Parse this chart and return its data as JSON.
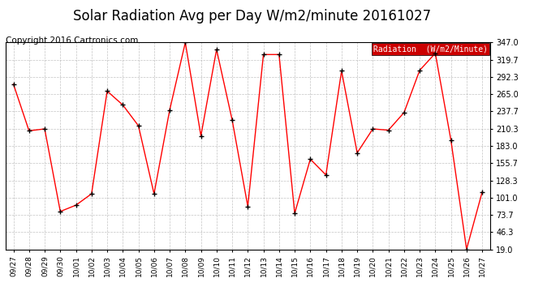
{
  "title": "Solar Radiation Avg per Day W/m2/minute 20161027",
  "copyright": "Copyright 2016 Cartronics.com",
  "legend_label": "Radiation  (W/m2/Minute)",
  "x_labels": [
    "09/27",
    "09/28",
    "09/29",
    "09/30",
    "10/01",
    "10/02",
    "10/03",
    "10/04",
    "10/05",
    "10/06",
    "10/07",
    "10/08",
    "10/09",
    "10/10",
    "10/11",
    "10/12",
    "10/13",
    "10/14",
    "10/15",
    "10/16",
    "10/17",
    "10/18",
    "10/19",
    "10/20",
    "10/21",
    "10/22",
    "10/23",
    "10/24",
    "10/25",
    "10/26",
    "10/27"
  ],
  "y_values": [
    281.0,
    207.0,
    210.0,
    79.0,
    89.0,
    107.0,
    270.0,
    248.0,
    215.0,
    107.0,
    240.0,
    347.0,
    199.0,
    336.0,
    224.0,
    87.0,
    328.0,
    328.0,
    76.0,
    162.0,
    137.0,
    302.0,
    172.0,
    210.0,
    208.0,
    236.0,
    303.0,
    330.0,
    192.0,
    19.0,
    110.0
  ],
  "line_color": "red",
  "marker_color": "black",
  "bg_color": "#ffffff",
  "plot_bg_color": "#ffffff",
  "grid_color": "#aaaaaa",
  "title_fontsize": 12,
  "copyright_fontsize": 7.5,
  "legend_bg_color": "#cc0000",
  "legend_text_color": "#ffffff",
  "y_min": 19.0,
  "y_max": 347.0,
  "y_ticks": [
    19.0,
    46.3,
    73.7,
    101.0,
    128.3,
    155.7,
    183.0,
    210.3,
    237.7,
    265.0,
    292.3,
    319.7,
    347.0
  ]
}
